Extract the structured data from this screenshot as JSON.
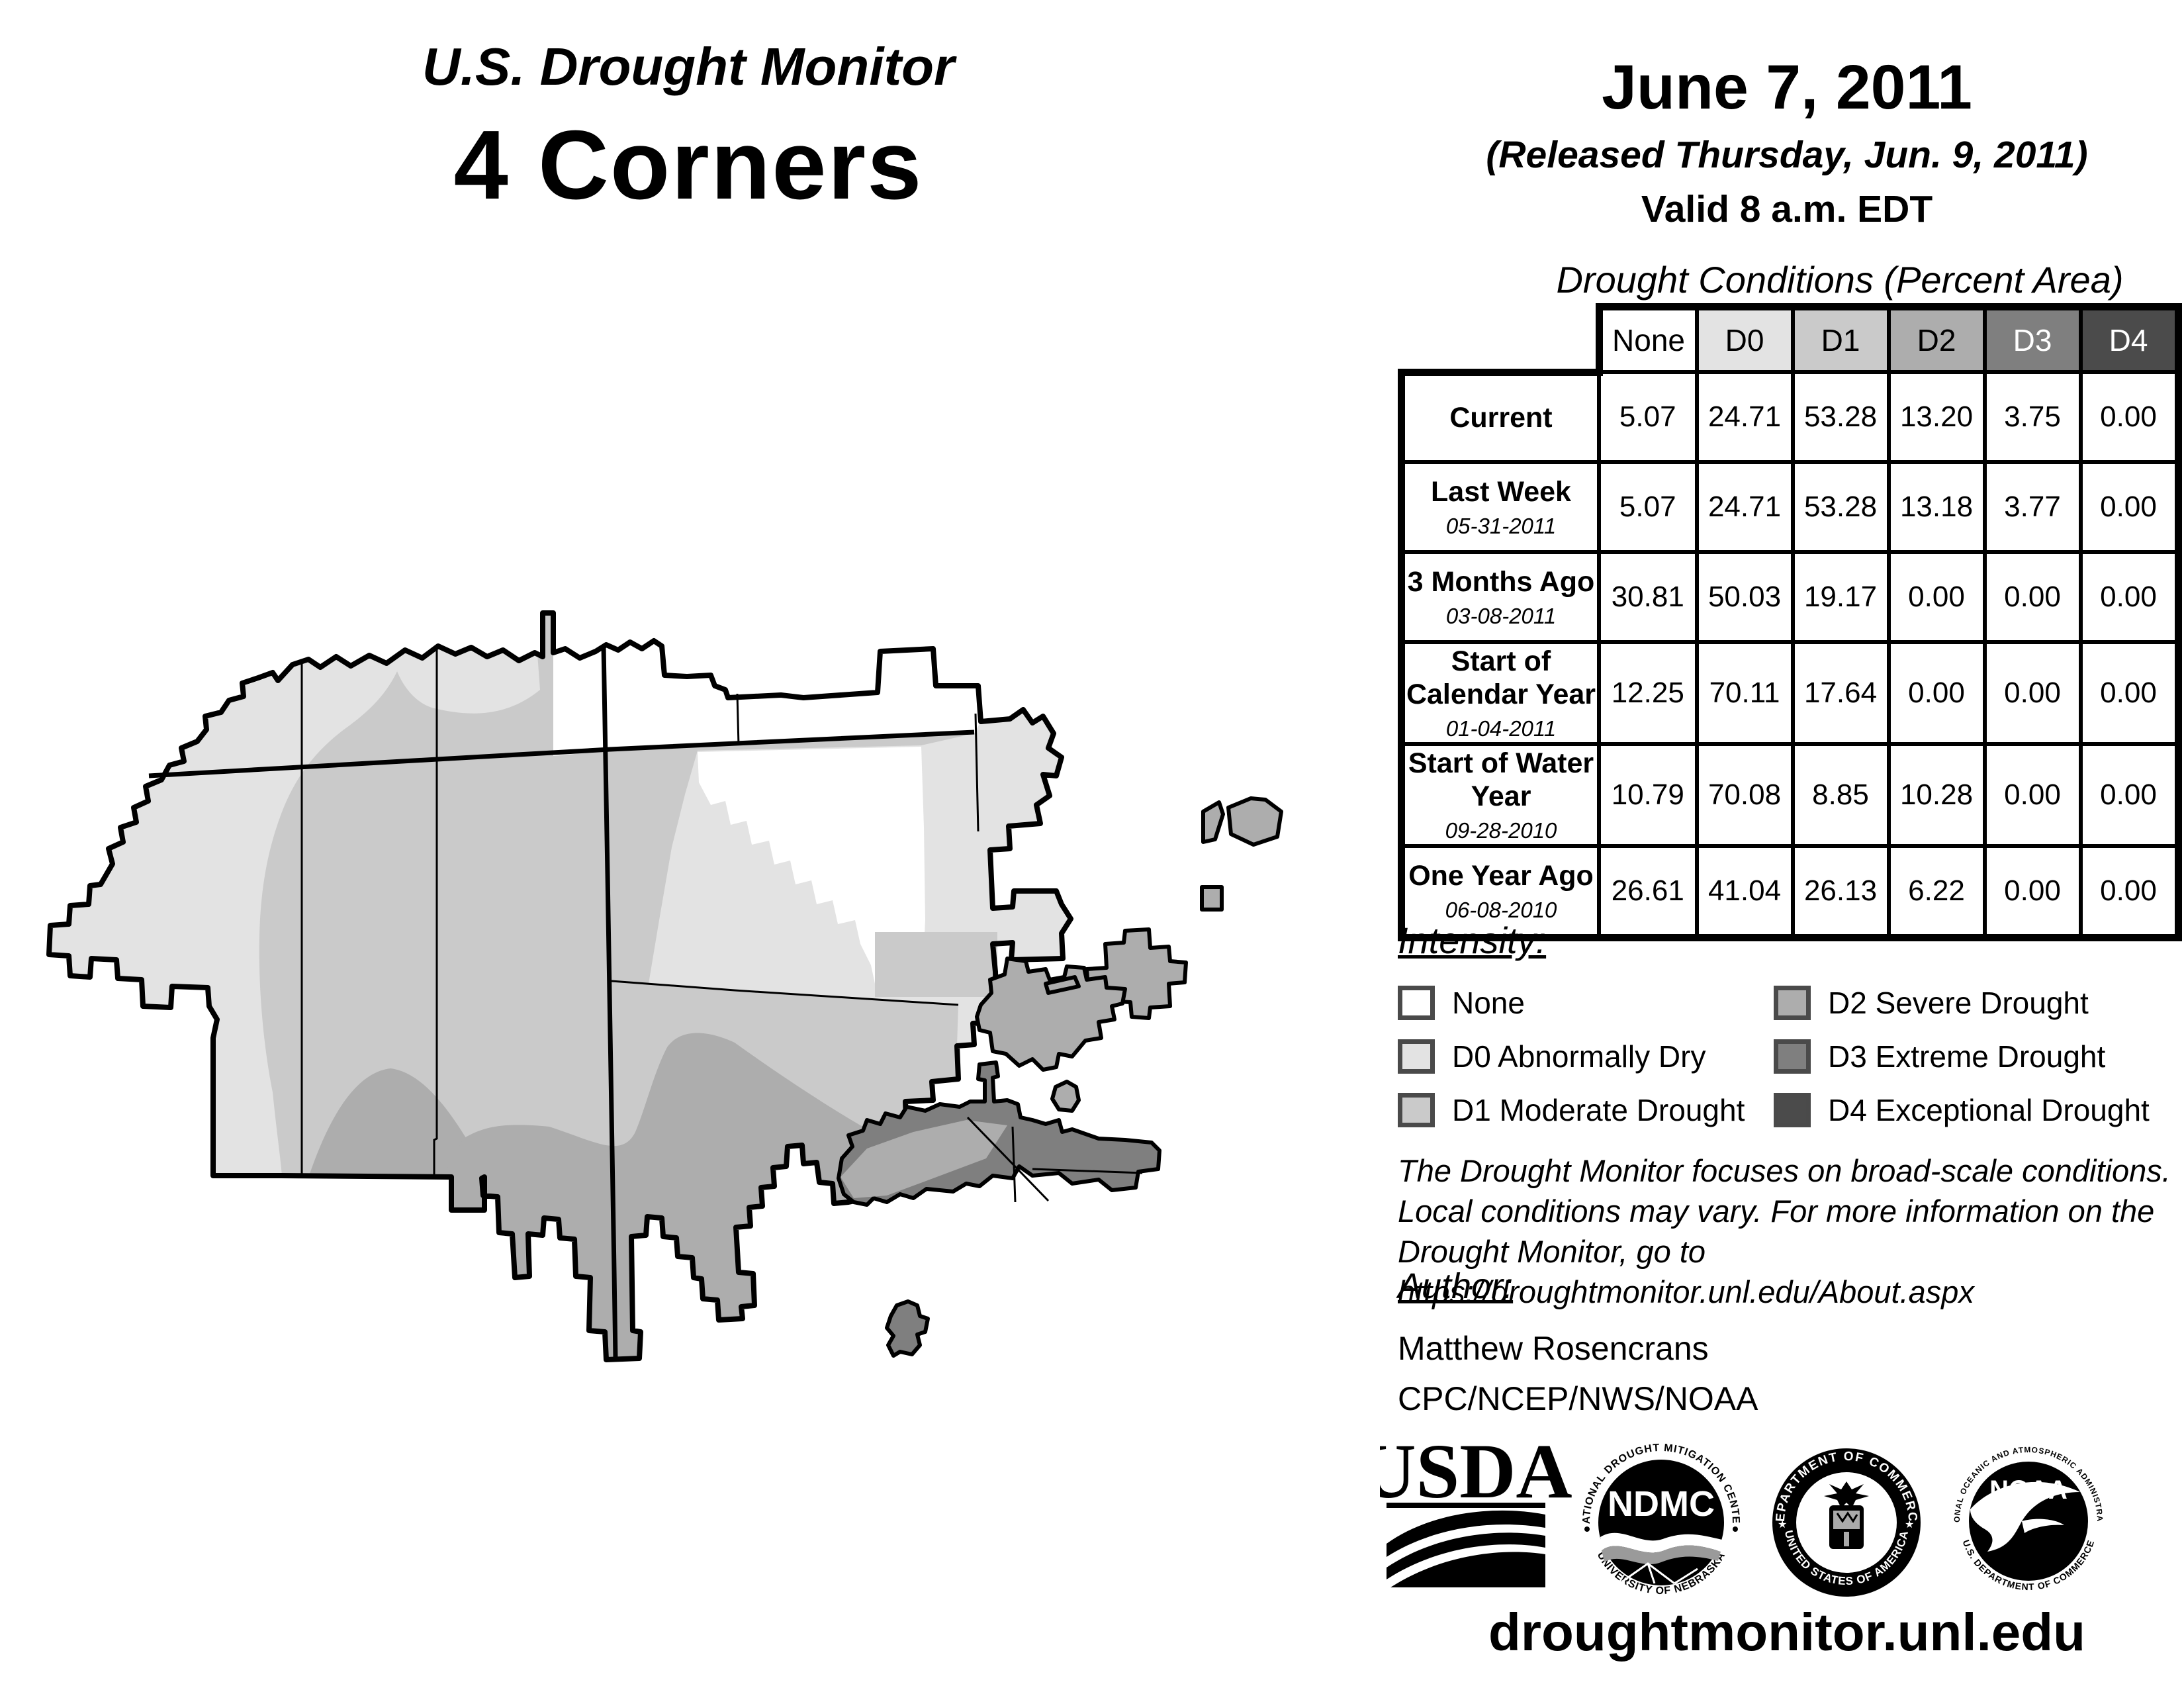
{
  "header": {
    "title": "U.S. Drought Monitor",
    "region": "4 Corners"
  },
  "issuance": {
    "date": "June 7, 2011",
    "released": "(Released Thursday, Jun. 9, 2011)",
    "valid": "Valid 8 a.m. EDT"
  },
  "table": {
    "title": "Drought Conditions (Percent Area)",
    "columns": [
      "None",
      "D0",
      "D1",
      "D2",
      "D3",
      "D4"
    ],
    "rows": [
      {
        "label": "Current",
        "date": "",
        "values": [
          "5.07",
          "24.71",
          "53.28",
          "13.20",
          "3.75",
          "0.00"
        ]
      },
      {
        "label": "Last Week",
        "date": "05-31-2011",
        "values": [
          "5.07",
          "24.71",
          "53.28",
          "13.18",
          "3.77",
          "0.00"
        ]
      },
      {
        "label": "3 Months Ago",
        "date": "03-08-2011",
        "values": [
          "30.81",
          "50.03",
          "19.17",
          "0.00",
          "0.00",
          "0.00"
        ]
      },
      {
        "label": "Start of Calendar Year",
        "date": "01-04-2011",
        "values": [
          "12.25",
          "70.11",
          "17.64",
          "0.00",
          "0.00",
          "0.00"
        ]
      },
      {
        "label": "Start of Water Year",
        "date": "09-28-2010",
        "values": [
          "10.79",
          "70.08",
          "8.85",
          "10.28",
          "0.00",
          "0.00"
        ]
      },
      {
        "label": "One Year Ago",
        "date": "06-08-2010",
        "values": [
          "26.61",
          "41.04",
          "26.13",
          "6.22",
          "0.00",
          "0.00"
        ]
      }
    ]
  },
  "legend": {
    "title": "Intensity:",
    "items": [
      {
        "code": "none",
        "label": "None",
        "color": "#ffffff"
      },
      {
        "code": "d0",
        "label": "D0 Abnormally Dry",
        "color": "#e3e3e3"
      },
      {
        "code": "d1",
        "label": "D1 Moderate Drought",
        "color": "#cacaca"
      },
      {
        "code": "d2",
        "label": "D2 Severe Drought",
        "color": "#adadad"
      },
      {
        "code": "d3",
        "label": "D3 Extreme Drought",
        "color": "#7f7f7f"
      },
      {
        "code": "d4",
        "label": "D4 Exceptional Drought",
        "color": "#4b4b4b"
      }
    ]
  },
  "notes": {
    "lines": [
      "The Drought Monitor focuses on broad-scale conditions.",
      "Local conditions may vary. For more information on the",
      "Drought Monitor, go to https://droughtmonitor.unl.edu/About.aspx"
    ]
  },
  "author": {
    "heading": "Author:",
    "name": "Matthew Rosencrans",
    "org": "CPC/NCEP/NWS/NOAA"
  },
  "logos": {
    "usda": {
      "label": "USDA"
    },
    "ndmc": {
      "label": "NDMC",
      "ring_top": "NATIONAL DROUGHT MITIGATION CENTER",
      "ring_bottom": "UNIVERSITY OF NEBRASKA"
    },
    "doc": {
      "ring_top": "DEPARTMENT OF COMMERCE",
      "ring_bottom": "UNITED STATES OF AMERICA"
    },
    "noaa": {
      "label": "NOAA",
      "ring_top": "NATIONAL OCEANIC AND ATMOSPHERIC ADMINISTRATION",
      "ring_bottom": "U.S. DEPARTMENT OF COMMERCE"
    }
  },
  "footer": {
    "url": "droughtmonitor.unl.edu"
  }
}
